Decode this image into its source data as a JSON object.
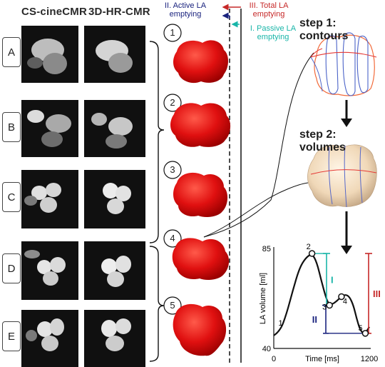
{
  "headers": {
    "cs_cine": "CS-cineCMR",
    "hr_cmr": "3D-HR-CMR"
  },
  "rows": [
    "A",
    "B",
    "C",
    "D",
    "E"
  ],
  "phases": [
    "1",
    "2",
    "3",
    "4",
    "5"
  ],
  "annotations": {
    "active": "II. Active LA emptying",
    "total": "III. Total LA emptying",
    "passive": "I. Passive LA emptying"
  },
  "steps": {
    "contours": "step 1: contours",
    "volumes": "step 2: volumes"
  },
  "colors": {
    "active": "#1a237e",
    "total": "#c62828",
    "passive": "#19b5a8",
    "la_surface": "#e01010",
    "mesh": "#f2dcc0"
  },
  "chart_data": {
    "type": "line",
    "xlabel": "Time [ms]",
    "ylabel": "LA volume [ml]",
    "xlim": [
      0,
      1200
    ],
    "ylim": [
      40,
      85
    ],
    "x_ticks": [
      "0",
      "1200"
    ],
    "y_ticks": [
      "85",
      "40"
    ],
    "grid": false,
    "points": [
      {
        "label": "1",
        "x": 40,
        "y": 48
      },
      {
        "label": "2",
        "x": 480,
        "y": 84
      },
      {
        "label": "3",
        "x": 700,
        "y": 60
      },
      {
        "label": "4",
        "x": 850,
        "y": 64
      },
      {
        "label": "5",
        "x": 1150,
        "y": 47
      }
    ],
    "curve": [
      [
        0,
        46
      ],
      [
        80,
        48
      ],
      [
        160,
        56
      ],
      [
        240,
        67
      ],
      [
        320,
        77
      ],
      [
        400,
        82
      ],
      [
        480,
        84
      ],
      [
        540,
        80
      ],
      [
        600,
        71
      ],
      [
        660,
        63
      ],
      [
        700,
        60
      ],
      [
        760,
        61
      ],
      [
        820,
        63
      ],
      [
        850,
        64
      ],
      [
        900,
        65
      ],
      [
        950,
        64
      ],
      [
        1000,
        60
      ],
      [
        1040,
        54
      ],
      [
        1080,
        49
      ],
      [
        1120,
        47
      ],
      [
        1150,
        47
      ],
      [
        1200,
        50
      ]
    ],
    "brackets": [
      {
        "label": "I",
        "from": 84,
        "to": 60
      },
      {
        "label": "II",
        "from": 60,
        "to": 47
      },
      {
        "label": "III",
        "from": 84,
        "to": 47
      }
    ]
  }
}
